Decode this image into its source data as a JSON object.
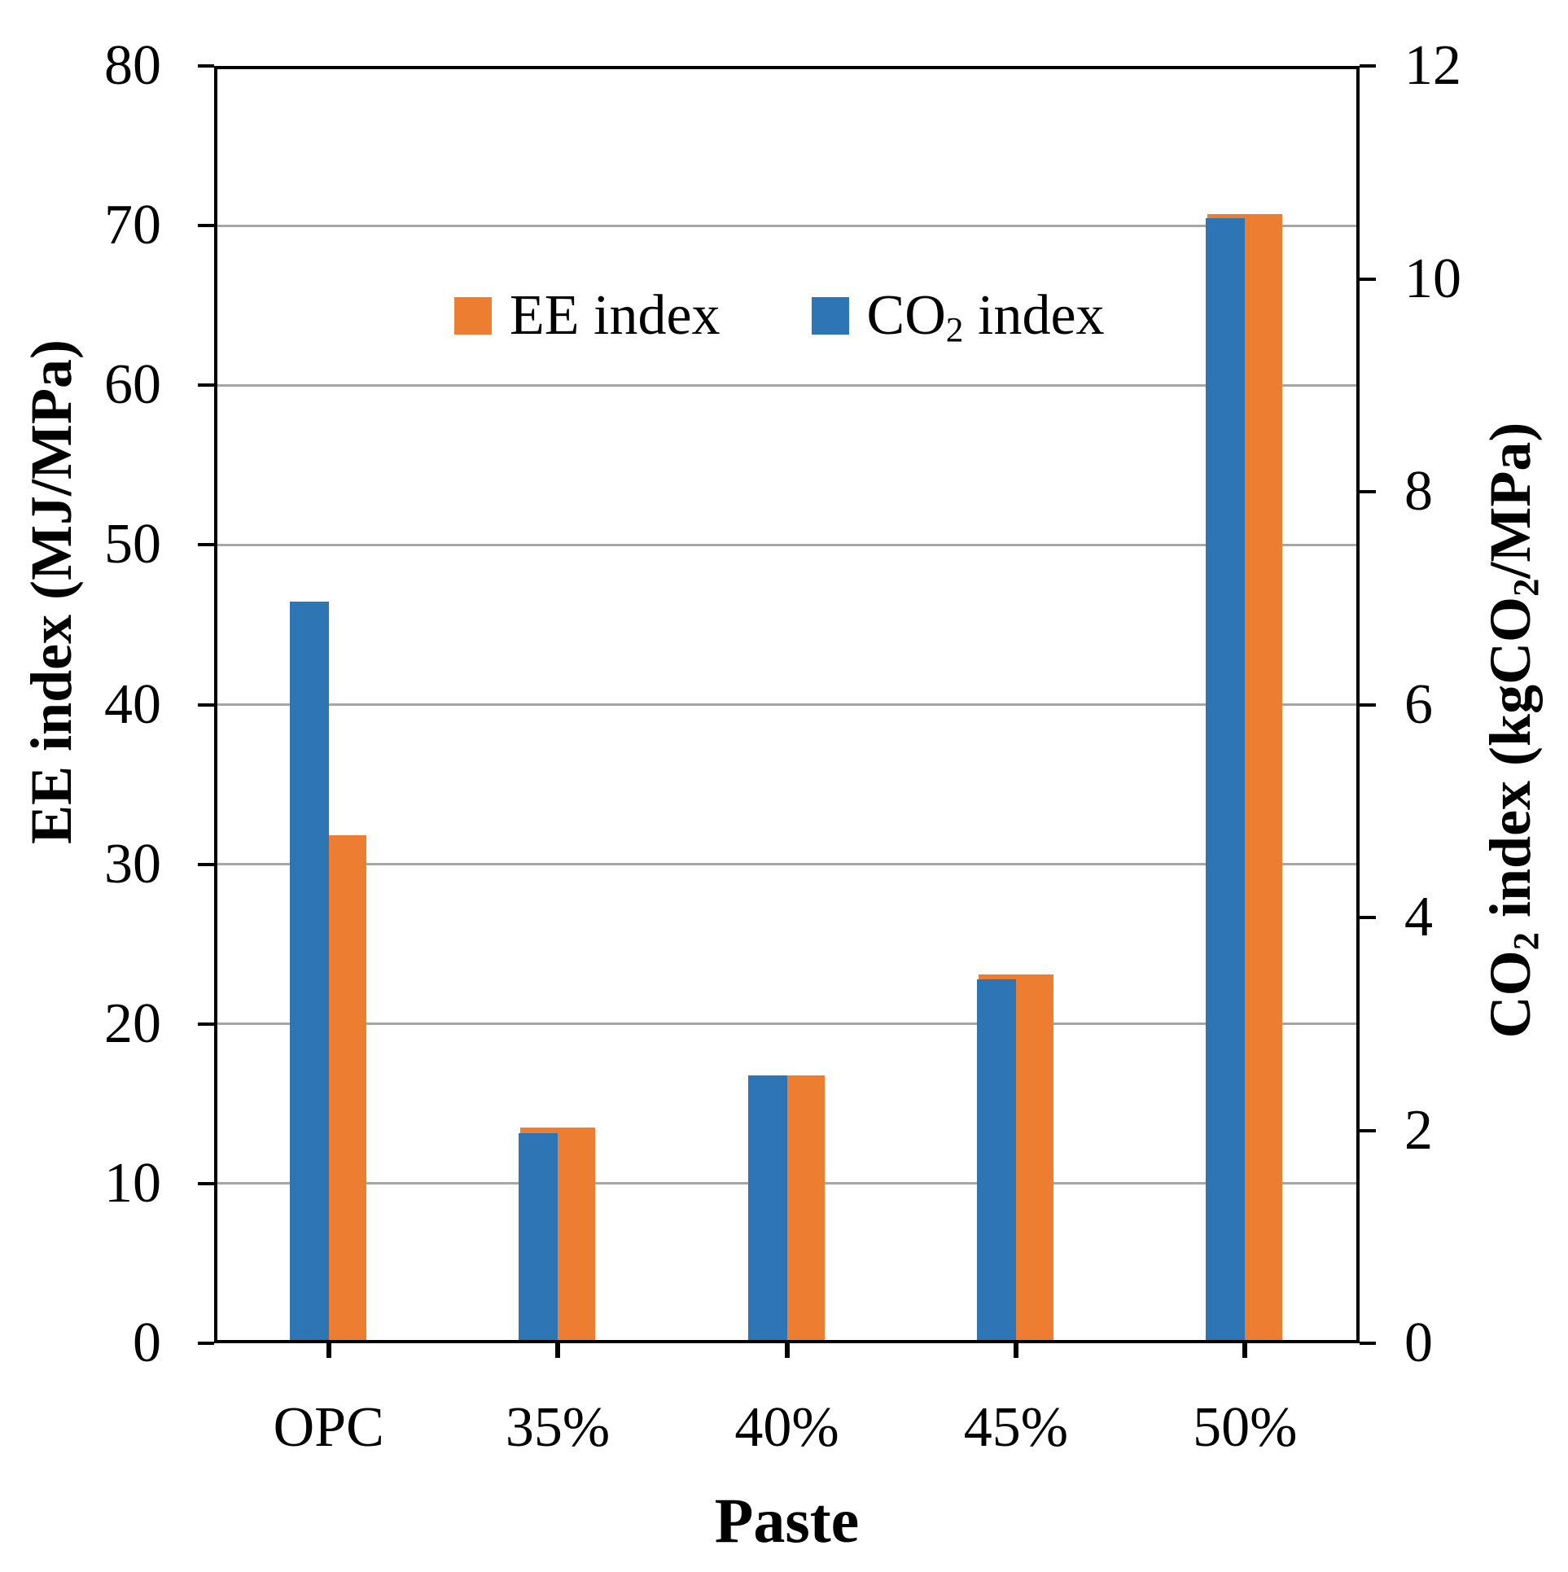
{
  "legend": {
    "items": [
      {
        "label": "EE index",
        "color": "#ED7D31"
      },
      {
        "label_parts": {
          "pre": "CO",
          "sub": "2",
          "post": " index"
        },
        "color": "#2E75B6"
      }
    ]
  },
  "axes": {
    "left": {
      "title": "EE index (MJ/MPa)"
    },
    "right": {
      "title_parts": [
        "CO",
        "2",
        " index (kgCO",
        "2",
        "/MPa)"
      ]
    },
    "x": {
      "title": "Paste"
    }
  },
  "chart_data": {
    "type": "bar",
    "title": "",
    "xlabel": "Paste",
    "ylabel_left": "EE index (MJ/MPa)",
    "ylabel_right": "CO2 index (kgCO2/MPa)",
    "categories": [
      "OPC",
      "35%",
      "40%",
      "45%",
      "50%"
    ],
    "series": [
      {
        "name": "EE index",
        "axis": "left",
        "color": "#ED7D31",
        "values": [
          31.8,
          13.5,
          16.8,
          23.1,
          70.7
        ]
      },
      {
        "name": "CO2 index",
        "axis": "right",
        "color": "#2E75B6",
        "values": [
          6.97,
          1.97,
          2.52,
          3.42,
          10.57
        ]
      }
    ],
    "ylim_left": [
      0,
      80
    ],
    "ylim_right": [
      0,
      12
    ],
    "left_ticks": [
      "0",
      "10",
      "20",
      "30",
      "40",
      "50",
      "60",
      "70",
      "80"
    ],
    "right_ticks": [
      "0",
      "2",
      "4",
      "6",
      "8",
      "10",
      "12"
    ],
    "gridlines": {
      "values": [
        10,
        20,
        30,
        40,
        50,
        60,
        70
      ],
      "color": "#A6A6A6"
    },
    "grid": "horizontal-only",
    "legend_position": "inside-top-center",
    "colors": {
      "axis_line": "#000000",
      "background": "#FFFFFF"
    }
  }
}
